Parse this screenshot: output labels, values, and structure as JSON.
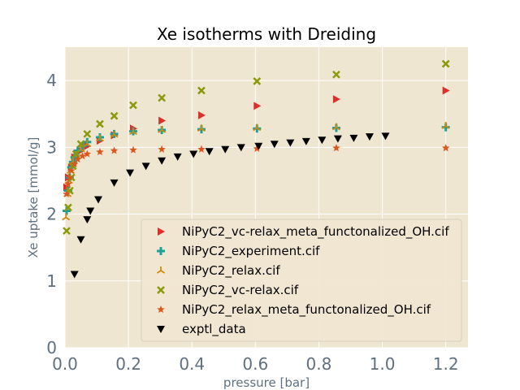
{
  "chart_data": {
    "type": "scatter",
    "title": "Xe isotherms with Dreiding",
    "xlabel": "pressure [bar]",
    "ylabel": "Xe uptake [mmol/g]",
    "xlim": [
      0,
      1.27
    ],
    "ylim": [
      0,
      4.5
    ],
    "xticks": [
      0.0,
      0.2,
      0.4,
      0.6,
      0.8,
      1.0,
      1.2
    ],
    "xtick_labels": [
      "0.0",
      "0.2",
      "0.4",
      "0.6",
      "0.8",
      "1.0",
      "1.2"
    ],
    "yticks": [
      0,
      1,
      2,
      3,
      4
    ],
    "ytick_labels": [
      "0",
      "1",
      "2",
      "3",
      "4"
    ],
    "grid": true,
    "legend_position": "lower-right",
    "colors": {
      "background": "#efe6d2",
      "grid": "#ffffff"
    },
    "series": [
      {
        "name": "NiPyC2_vc-relax_meta_functonalized_OH.cif",
        "marker": "triangle-right",
        "color": "#d9312c",
        "x": [
          0.005,
          0.01,
          0.02,
          0.03,
          0.05,
          0.07,
          0.11,
          0.155,
          0.215,
          0.305,
          0.43,
          0.605,
          0.855,
          1.2
        ],
        "y": [
          2.4,
          2.55,
          2.7,
          2.85,
          2.95,
          3.02,
          3.1,
          3.18,
          3.28,
          3.4,
          3.48,
          3.62,
          3.72,
          3.85
        ]
      },
      {
        "name": "NiPyC2_experiment.cif",
        "marker": "plus",
        "color": "#1ca09c",
        "x": [
          0.005,
          0.01,
          0.015,
          0.02,
          0.025,
          0.03,
          0.04,
          0.055,
          0.07,
          0.11,
          0.155,
          0.215,
          0.305,
          0.43,
          0.605,
          0.855,
          1.2
        ],
        "y": [
          2.05,
          2.35,
          2.55,
          2.7,
          2.78,
          2.85,
          2.95,
          3.02,
          3.08,
          3.15,
          3.2,
          3.24,
          3.26,
          3.27,
          3.28,
          3.29,
          3.3
        ]
      },
      {
        "name": "NiPyC2_relax.cif",
        "marker": "tri-up",
        "color": "#cf8a0c",
        "x": [
          0.003,
          0.008,
          0.012,
          0.018,
          0.025,
          0.035,
          0.05,
          0.07,
          0.11,
          0.155,
          0.215,
          0.305,
          0.43,
          0.605,
          0.855,
          1.2
        ],
        "y": [
          1.95,
          2.3,
          2.5,
          2.65,
          2.78,
          2.88,
          2.97,
          3.05,
          3.13,
          3.19,
          3.23,
          3.26,
          3.28,
          3.29,
          3.3,
          3.32
        ]
      },
      {
        "name": "NiPyC2_vc-relax.cif",
        "marker": "x",
        "color": "#8a9a0c",
        "x": [
          0.005,
          0.01,
          0.015,
          0.02,
          0.025,
          0.035,
          0.05,
          0.07,
          0.11,
          0.155,
          0.215,
          0.305,
          0.43,
          0.605,
          0.855,
          1.2
        ],
        "y": [
          1.75,
          2.1,
          2.35,
          2.55,
          2.72,
          2.9,
          3.05,
          3.2,
          3.35,
          3.47,
          3.63,
          3.74,
          3.85,
          3.99,
          4.09,
          4.25
        ]
      },
      {
        "name": "NiPyC2_relax_meta_functonalized_OH.cif",
        "marker": "star",
        "color": "#d9581f",
        "x": [
          0.005,
          0.01,
          0.015,
          0.02,
          0.03,
          0.04,
          0.055,
          0.07,
          0.11,
          0.155,
          0.215,
          0.305,
          0.43,
          0.605,
          0.855,
          1.2
        ],
        "y": [
          2.3,
          2.45,
          2.55,
          2.65,
          2.75,
          2.82,
          2.87,
          2.9,
          2.93,
          2.95,
          2.96,
          2.97,
          2.97,
          2.98,
          2.99,
          2.99
        ]
      },
      {
        "name": "exptl_data",
        "marker": "triangle-down",
        "color": "#000000",
        "x": [
          0.03,
          0.05,
          0.07,
          0.08,
          0.105,
          0.155,
          0.205,
          0.255,
          0.305,
          0.355,
          0.405,
          0.455,
          0.505,
          0.555,
          0.61,
          0.66,
          0.71,
          0.76,
          0.81,
          0.86,
          0.91,
          0.96,
          1.01
        ],
        "y": [
          1.1,
          1.62,
          1.92,
          2.05,
          2.22,
          2.47,
          2.62,
          2.72,
          2.8,
          2.86,
          2.9,
          2.94,
          2.97,
          3.0,
          3.02,
          3.05,
          3.07,
          3.09,
          3.11,
          3.13,
          3.14,
          3.16,
          3.17
        ]
      }
    ]
  }
}
